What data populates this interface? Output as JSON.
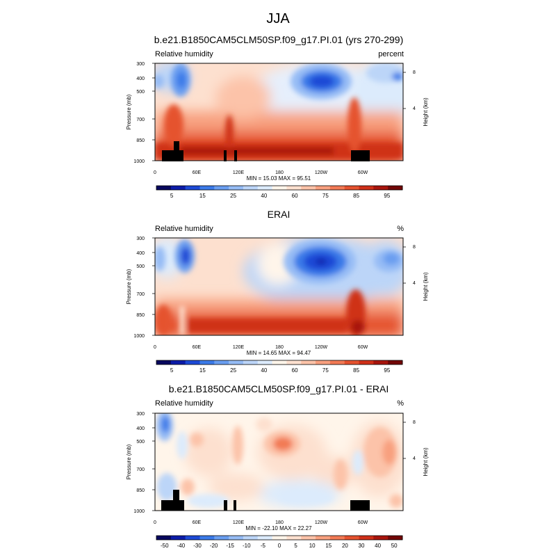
{
  "figure_title": "JJA",
  "chart_data": [
    {
      "type": "heatmap",
      "title": "b.e21.B1850CAM5CLM50SP.f09_g17.PI.01 (yrs 270-299)",
      "left_string": "Relative humidity",
      "right_string": "percent",
      "ylabel": "Pressure (mb)",
      "right_axis_label": "Height (km)",
      "x_ticks": [
        "0",
        "60E",
        "120E",
        "180",
        "120W",
        "60W"
      ],
      "y_ticks": [
        "300",
        "400",
        "500",
        "700",
        "850",
        "1000"
      ],
      "height_ticks": [
        "8",
        "4"
      ],
      "min_max": "MIN = 15.03   MAX = 95.51",
      "colorbar_labels": [
        "5",
        "15",
        "25",
        "40",
        "60",
        "75",
        "85",
        "95"
      ],
      "palette": [
        "#08085e",
        "#0c1ca8",
        "#1d4ad6",
        "#3b7ae8",
        "#6a9ef0",
        "#96bcf5",
        "#bcd5f8",
        "#dcebfc",
        "#fff5ea",
        "#fde0cf",
        "#fcc3a9",
        "#f8a07f",
        "#f27a55",
        "#e5522f",
        "#cf3019",
        "#a8150d",
        "#720707"
      ],
      "min": 15.03,
      "max": 95.51
    },
    {
      "type": "heatmap",
      "title": "ERAI",
      "left_string": "Relative humidity",
      "right_string": "%",
      "ylabel": "Pressure (mb)",
      "right_axis_label": "Height (km)",
      "x_ticks": [
        "0",
        "60E",
        "120E",
        "180",
        "120W",
        "60W"
      ],
      "y_ticks": [
        "300",
        "400",
        "500",
        "700",
        "850",
        "1000"
      ],
      "height_ticks": [
        "8",
        "4"
      ],
      "min_max": "MIN = 14.65   MAX = 94.47",
      "colorbar_labels": [
        "5",
        "15",
        "25",
        "40",
        "60",
        "75",
        "85",
        "95"
      ],
      "palette": [
        "#08085e",
        "#0c1ca8",
        "#1d4ad6",
        "#3b7ae8",
        "#6a9ef0",
        "#96bcf5",
        "#bcd5f8",
        "#dcebfc",
        "#fff5ea",
        "#fde0cf",
        "#fcc3a9",
        "#f8a07f",
        "#f27a55",
        "#e5522f",
        "#cf3019",
        "#a8150d",
        "#720707"
      ],
      "min": 14.65,
      "max": 94.47
    },
    {
      "type": "heatmap",
      "title": "b.e21.B1850CAM5CLM50SP.f09_g17.PI.01 - ERAI",
      "left_string": "Relative humidity",
      "right_string": "%",
      "ylabel": "Pressure (mb)",
      "right_axis_label": "Height (km)",
      "x_ticks": [
        "0",
        "60E",
        "120E",
        "180",
        "120W",
        "60W"
      ],
      "y_ticks": [
        "300",
        "400",
        "500",
        "700",
        "850",
        "1000"
      ],
      "height_ticks": [
        "8",
        "4"
      ],
      "min_max": "MIN = -22.10   MAX = 22.27",
      "colorbar_labels": [
        "-50",
        "-40",
        "-30",
        "-20",
        "-15",
        "-10",
        "-5",
        "0",
        "5",
        "10",
        "15",
        "20",
        "30",
        "40",
        "50"
      ],
      "palette": [
        "#08085e",
        "#0c1ca8",
        "#1d4ad6",
        "#3b7ae8",
        "#6a9ef0",
        "#96bcf5",
        "#bcd5f8",
        "#dcebfc",
        "#fff5ea",
        "#fde0cf",
        "#fcc3a9",
        "#f8a07f",
        "#f27a55",
        "#e5522f",
        "#cf3019",
        "#a8150d",
        "#720707"
      ],
      "min": -22.1,
      "max": 22.27
    }
  ]
}
